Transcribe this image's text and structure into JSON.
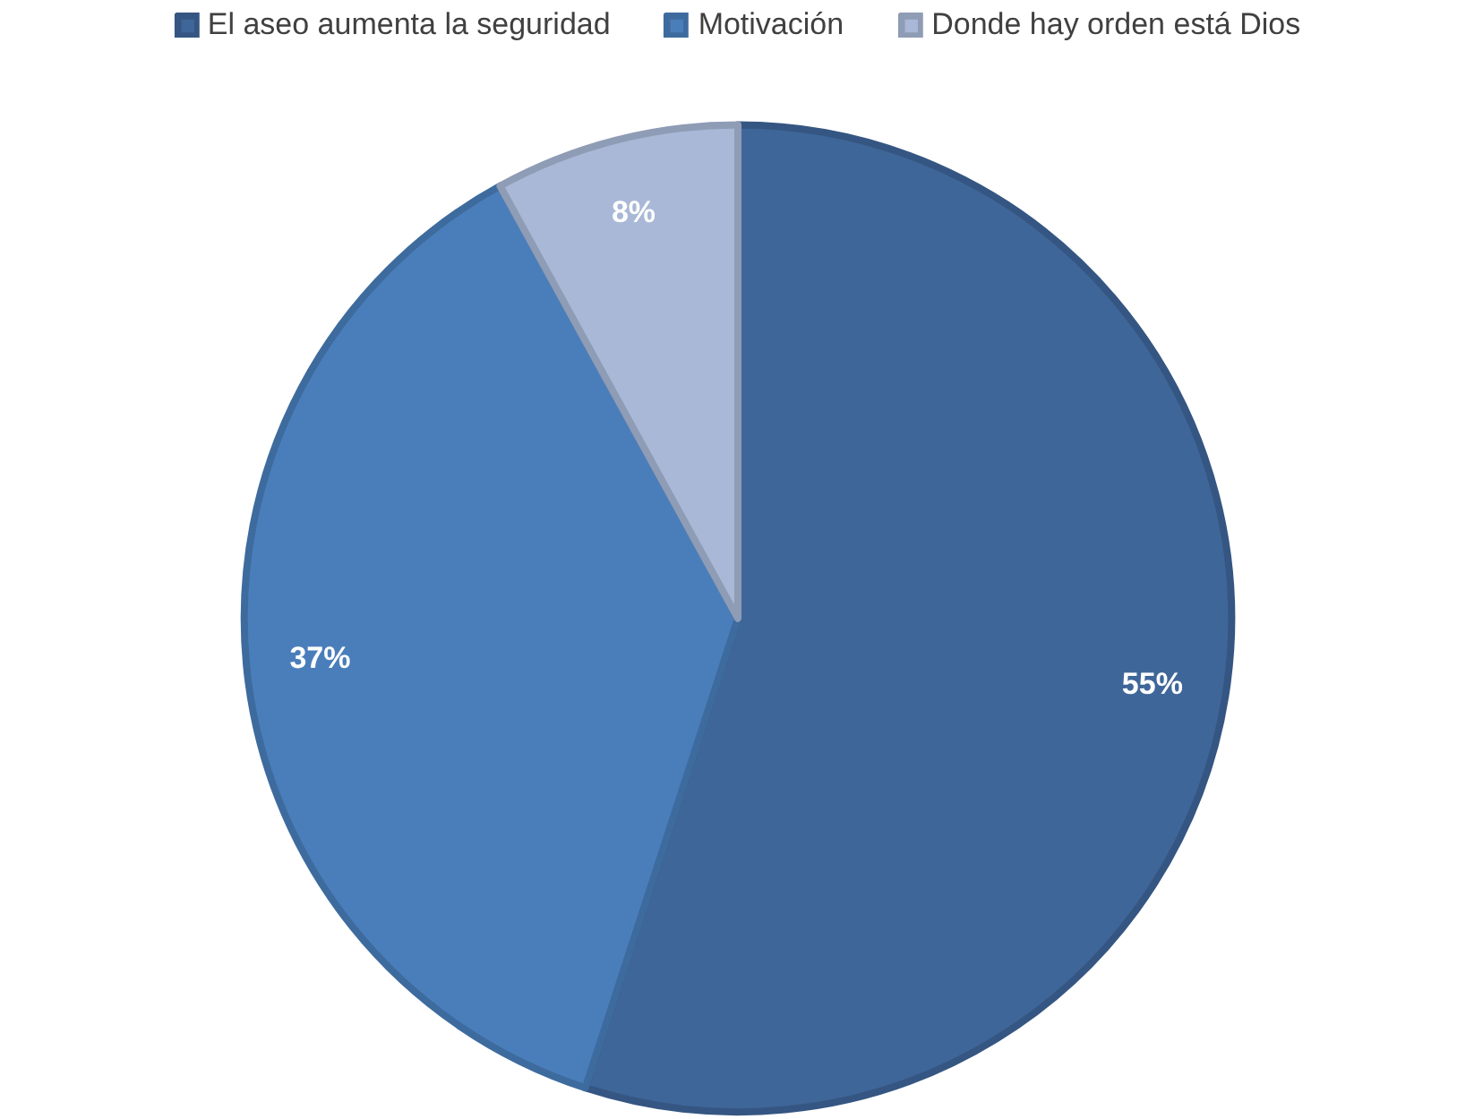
{
  "chart_data": {
    "type": "pie",
    "categories": [
      "El aseo aumenta la seguridad",
      "Motivación",
      "Donde hay orden está Dios"
    ],
    "values": [
      55,
      37,
      8
    ],
    "colors": [
      "#3f6699",
      "#4a7ebb",
      "#a9b8d6"
    ],
    "value_labels": [
      "55%",
      "37%",
      "8%"
    ],
    "legend": "top"
  }
}
